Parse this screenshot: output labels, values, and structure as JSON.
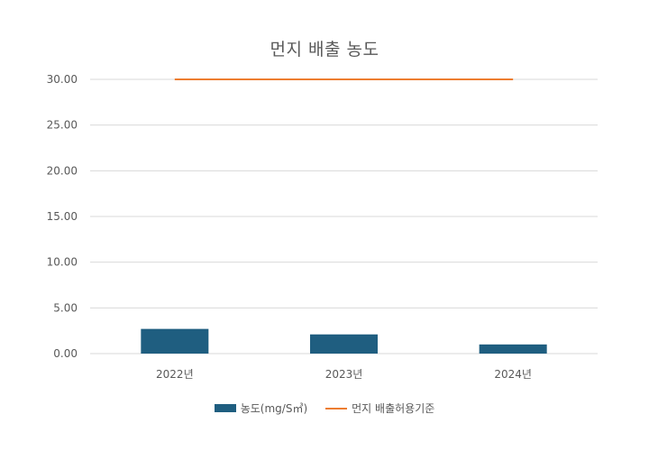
{
  "chart_data": {
    "type": "bar",
    "title": "먼지 배출 농도",
    "categories": [
      "2022년",
      "2023년",
      "2024년"
    ],
    "series": [
      {
        "name": "농도(mg/S㎥)",
        "type": "bar",
        "color": "#1F5E80",
        "values": [
          2.7,
          2.1,
          1.0
        ]
      },
      {
        "name": "먼지 배출허용기준",
        "type": "line",
        "color": "#ED7D31",
        "values": [
          30,
          30,
          30
        ]
      }
    ],
    "yticks": [
      "0.00",
      "5.00",
      "10.00",
      "15.00",
      "20.00",
      "25.00",
      "30.00"
    ],
    "ylim": [
      0,
      30
    ],
    "grid": true,
    "legend_position": "bottom"
  }
}
